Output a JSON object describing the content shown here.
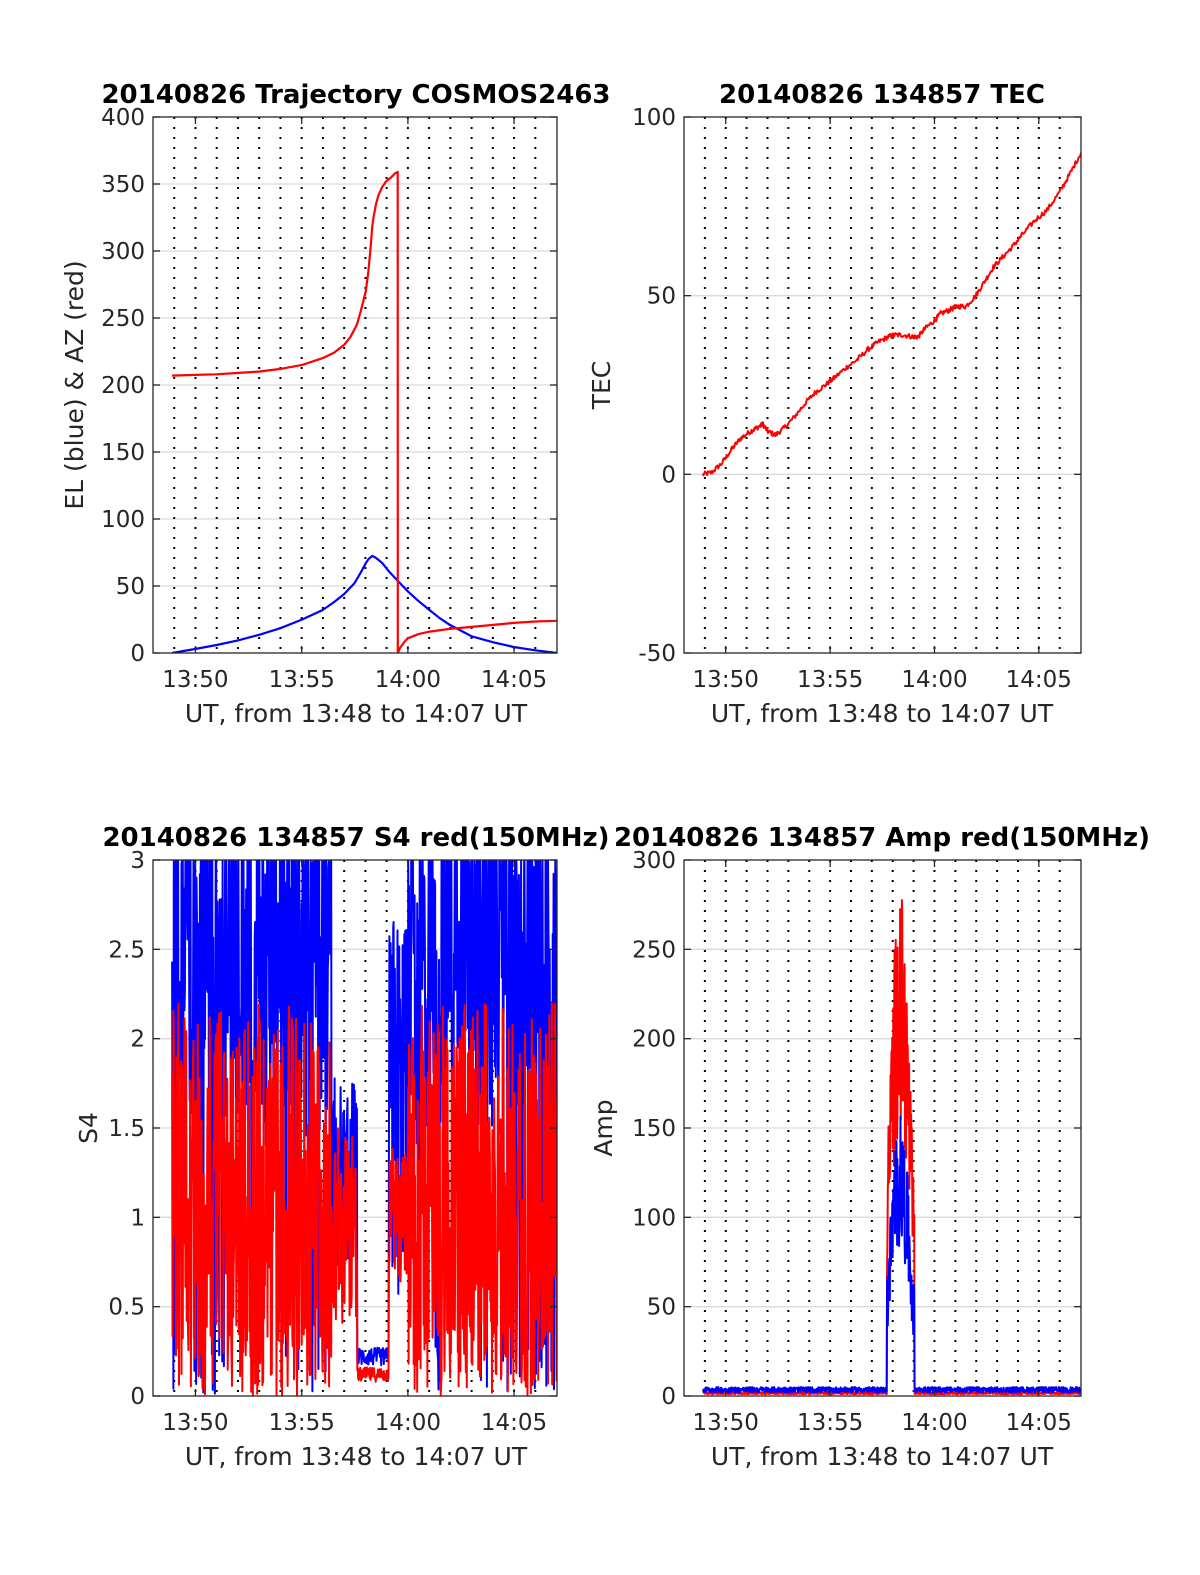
{
  "colors": {
    "red": "#ff0000",
    "blue": "#0000ff"
  },
  "chart_data": [
    {
      "type": "line",
      "title": "20140826 Trajectory COSMOS2463",
      "xlabel": "UT, from 13:48 to 14:07 UT",
      "ylabel": "EL (blue) & AZ (red)",
      "xlim": [
        13.8,
        14.117
      ],
      "ylim": [
        0,
        400
      ],
      "yticks": [
        "0",
        "50",
        "100",
        "150",
        "200",
        "250",
        "300",
        "350",
        "400"
      ],
      "xticks": [
        "13:50",
        "13:55",
        "14:00",
        "14:05"
      ],
      "grid": "dotted vertical every minute, light horizontal",
      "series": [
        {
          "color": "red",
          "x": [
            13.815,
            13.833,
            13.85,
            13.867,
            13.883,
            13.9,
            13.917,
            13.933,
            13.942,
            13.95,
            13.955,
            13.96,
            13.963,
            13.967,
            13.969,
            13.971,
            13.972,
            13.973,
            13.975,
            13.977,
            13.98,
            13.983,
            13.987,
            13.99,
            13.992,
            13.9921,
            13.994,
            13.997,
            14.0,
            14.008,
            14.017,
            14.033,
            14.05,
            14.067,
            14.083,
            14.1,
            14.117
          ],
          "y": [
            207,
            207.5,
            208,
            209,
            210,
            212,
            215,
            220,
            224,
            230,
            236,
            245,
            255,
            270,
            285,
            305,
            318,
            325,
            335,
            342,
            348,
            352,
            355,
            358,
            359,
            0,
            4,
            8,
            11,
            14,
            16,
            18,
            19.5,
            21,
            22.5,
            23.5,
            24
          ]
        },
        {
          "color": "blue",
          "x": [
            13.815,
            13.833,
            13.85,
            13.867,
            13.883,
            13.9,
            13.917,
            13.933,
            13.942,
            13.95,
            13.958,
            13.963,
            13.967,
            13.969,
            13.972,
            13.975,
            13.98,
            13.985,
            13.99,
            13.995,
            14.0,
            14.008,
            14.017,
            14.025,
            14.033,
            14.042,
            14.05,
            14.067,
            14.083,
            14.1,
            14.117
          ],
          "y": [
            0,
            3,
            6,
            9.5,
            13.5,
            18.5,
            25,
            32,
            38,
            44,
            52,
            60,
            67,
            70,
            72.5,
            71,
            67,
            61,
            56,
            51,
            46,
            39,
            32,
            26,
            21,
            16.5,
            12.5,
            8,
            4.5,
            2,
            0
          ]
        }
      ]
    },
    {
      "type": "line",
      "title": "20140826 134857 TEC",
      "xlabel": "UT, from 13:48 to 14:07 UT",
      "ylabel": "TEC",
      "xlim": [
        13.8,
        14.117
      ],
      "ylim": [
        -50,
        100
      ],
      "yticks": [
        "-50",
        "0",
        "50",
        "100"
      ],
      "xticks": [
        "13:50",
        "13:55",
        "14:00",
        "14:05"
      ],
      "series": [
        {
          "color": "red",
          "x": [
            13.815,
            13.822,
            13.83,
            13.838,
            13.845,
            13.853,
            13.858,
            13.863,
            13.867,
            13.873,
            13.88,
            13.888,
            13.897,
            13.905,
            13.913,
            13.92,
            13.93,
            13.938,
            13.947,
            13.955,
            13.963,
            13.968,
            13.975,
            13.983,
            13.987,
            13.993,
            14.0,
            14.005,
            14.012,
            14.018,
            14.025,
            14.033,
            14.04,
            14.047,
            14.055,
            14.063,
            14.07,
            14.08,
            14.09,
            14.1,
            14.108,
            14.117
          ],
          "y": [
            0,
            0.5,
            3,
            7,
            10,
            12,
            13,
            14,
            12,
            11,
            13,
            16,
            20,
            23,
            25,
            27,
            30,
            32,
            35,
            37,
            38.5,
            39,
            39,
            38.5,
            38.5,
            41,
            43,
            45,
            46,
            47,
            47,
            50,
            54,
            58,
            61,
            64,
            67,
            71,
            74,
            79,
            84,
            90
          ]
        }
      ]
    },
    {
      "type": "line",
      "title": "20140826 134857 S4 red(150MHz)",
      "xlabel": "UT, from 13:48 to 14:07 UT",
      "ylabel": "S4",
      "xlim": [
        13.8,
        14.117
      ],
      "ylim": [
        0,
        3
      ],
      "yticks": [
        "0",
        "0.5",
        "1",
        "1.5",
        "2",
        "2.5",
        "3"
      ],
      "xticks": [
        "13:50",
        "13:55",
        "14:00",
        "14:05"
      ],
      "series": [
        {
          "color": "blue",
          "name": "",
          "envelope": "high-variance noise, mostly saturated near 3 before 13:57 and after 13:59, dropping to ~0.2 between 13:57:30 and 13:59"
        },
        {
          "color": "red",
          "name": "",
          "envelope": "high-variance noise between 0 and ~2, dips to ~0.1 between 13:57:30 and 13:59"
        }
      ]
    },
    {
      "type": "line",
      "title": "20140826 134857 Amp red(150MHz)",
      "xlabel": "UT, from 13:48 to 14:07 UT",
      "ylabel": "Amp",
      "xlim": [
        13.8,
        14.117
      ],
      "ylim": [
        0,
        300
      ],
      "yticks": [
        "0",
        "50",
        "100",
        "150",
        "200",
        "250",
        "300"
      ],
      "xticks": [
        "13:50",
        "13:55",
        "14:00",
        "14:05"
      ],
      "series": [
        {
          "color": "red",
          "name": "",
          "peak_window": [
            13.962,
            13.984
          ],
          "peak_max": 283,
          "baseline": 1
        },
        {
          "color": "blue",
          "name": "",
          "peak_window": [
            13.962,
            13.984
          ],
          "peak_max": 160,
          "baseline": 2
        }
      ]
    }
  ]
}
